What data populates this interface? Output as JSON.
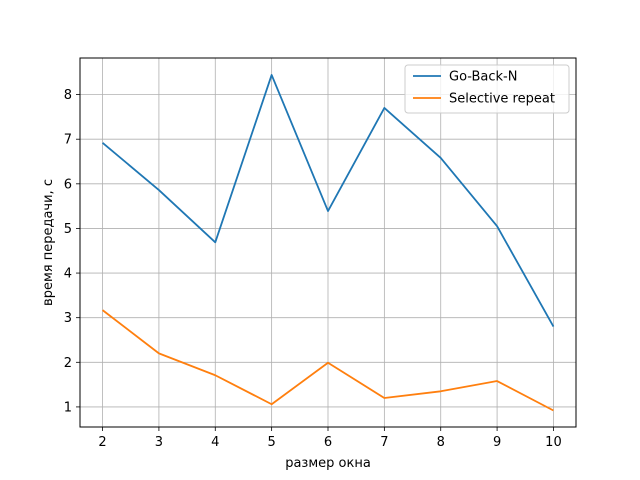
{
  "chart_data": {
    "type": "line",
    "title": "",
    "xlabel": "размер окна",
    "ylabel": "время передачи, с",
    "x": [
      2,
      3,
      4,
      5,
      6,
      7,
      8,
      9,
      10
    ],
    "series": [
      {
        "name": "Go-Back-N",
        "color": "#1f77b4",
        "values": [
          6.92,
          5.86,
          4.69,
          8.44,
          5.39,
          7.7,
          6.58,
          5.05,
          2.8
        ]
      },
      {
        "name": "Selective repeat",
        "color": "#ff7f0e",
        "values": [
          3.17,
          2.2,
          1.71,
          1.06,
          1.99,
          1.2,
          1.35,
          1.58,
          0.92
        ]
      }
    ],
    "xlim": [
      1.6,
      10.4
    ],
    "ylim": [
      0.55,
      8.82
    ],
    "xticks": [
      2,
      3,
      4,
      5,
      6,
      7,
      8,
      9,
      10
    ],
    "yticks": [
      1,
      2,
      3,
      4,
      5,
      6,
      7,
      8
    ],
    "grid": true,
    "legend_position": "top-right"
  }
}
